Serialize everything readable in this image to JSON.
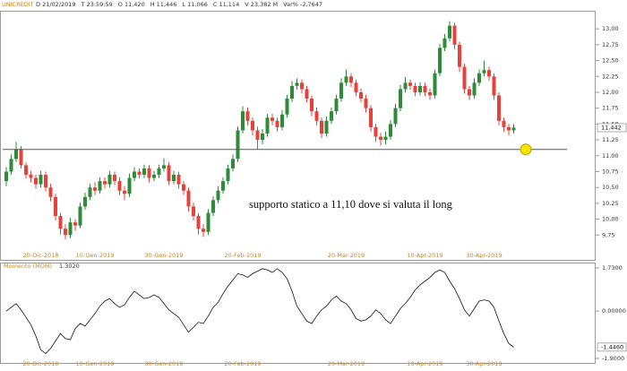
{
  "header": {
    "symbol": "UNICREDIT",
    "fields": [
      "D 21/02/2019",
      "T 23:59:59",
      "O 11,420",
      "H 11,446",
      "L 11,066",
      "C 11,114",
      "V 23,382 M",
      "Var% -2,7647"
    ]
  },
  "chart_data": [
    {
      "type": "candlestick",
      "categories": [
        null,
        null,
        null,
        null,
        null,
        null,
        null,
        "20-Dic-2018",
        null,
        null,
        null,
        null,
        null,
        null,
        null,
        null,
        null,
        null,
        "10-Gen-2019",
        null,
        null,
        null,
        null,
        null,
        null,
        null,
        null,
        null,
        null,
        null,
        null,
        null,
        "30-Gen-2019",
        null,
        null,
        null,
        null,
        null,
        null,
        null,
        null,
        null,
        null,
        null,
        null,
        null,
        null,
        null,
        "20-Feb-2019",
        null,
        null,
        null,
        null,
        null,
        null,
        null,
        null,
        null,
        null,
        null,
        null,
        null,
        null,
        null,
        null,
        null,
        null,
        null,
        null,
        "20-Mar-2019",
        null,
        null,
        null,
        null,
        null,
        null,
        null,
        null,
        null,
        null,
        null,
        null,
        null,
        null,
        null,
        "10-Apr-2019",
        null,
        null,
        null,
        null,
        null,
        null,
        null,
        null,
        null,
        null,
        null,
        "30-Apr-2019",
        null,
        null,
        null,
        null,
        null,
        null
      ],
      "open": [
        10.6,
        10.75,
        10.95,
        11.1,
        10.85,
        10.7,
        10.65,
        10.55,
        10.7,
        10.5,
        10.35,
        10.05,
        9.85,
        9.75,
        9.95,
        9.9,
        10.2,
        10.35,
        10.5,
        10.45,
        10.6,
        10.55,
        10.7,
        10.6,
        10.45,
        10.4,
        10.65,
        10.75,
        10.7,
        10.8,
        10.65,
        10.7,
        10.8,
        10.85,
        10.6,
        10.7,
        10.55,
        10.45,
        10.2,
        10.05,
        9.85,
        9.8,
        10.1,
        10.3,
        10.45,
        10.6,
        10.8,
        10.95,
        11.4,
        11.7,
        11.55,
        11.4,
        11.25,
        11.35,
        11.6,
        11.55,
        11.45,
        11.65,
        11.9,
        12.1,
        12.15,
        12.05,
        11.9,
        11.7,
        11.55,
        11.35,
        11.55,
        11.7,
        11.9,
        12.15,
        12.25,
        12.15,
        12.0,
        11.9,
        11.75,
        11.45,
        11.3,
        11.25,
        11.3,
        11.5,
        11.75,
        12.05,
        12.15,
        12.1,
        12.0,
        12.1,
        12.0,
        11.95,
        12.3,
        12.7,
        12.85,
        13.05,
        12.75,
        12.4,
        12.05,
        11.95,
        12.15,
        12.3,
        12.35,
        12.25,
        11.95,
        11.55,
        11.45,
        11.4
      ],
      "high": [
        10.82,
        11.02,
        11.22,
        11.15,
        10.9,
        10.76,
        10.7,
        10.76,
        10.75,
        10.56,
        10.4,
        10.1,
        9.92,
        10.02,
        10.0,
        10.26,
        10.42,
        10.56,
        10.58,
        10.66,
        10.66,
        10.76,
        10.75,
        10.66,
        10.52,
        10.72,
        10.82,
        10.8,
        10.86,
        10.85,
        10.76,
        10.86,
        10.96,
        10.9,
        10.76,
        10.75,
        10.6,
        10.5,
        10.26,
        10.1,
        9.92,
        10.16,
        10.36,
        10.52,
        10.66,
        10.86,
        11.02,
        11.46,
        11.78,
        11.76,
        11.6,
        11.46,
        11.42,
        11.66,
        11.66,
        11.6,
        11.72,
        11.96,
        12.18,
        12.22,
        12.2,
        12.1,
        11.95,
        11.76,
        11.6,
        11.62,
        11.76,
        11.96,
        12.22,
        12.36,
        12.3,
        12.2,
        12.06,
        11.96,
        11.8,
        11.5,
        11.36,
        11.38,
        11.56,
        11.82,
        12.12,
        12.24,
        12.2,
        12.15,
        12.16,
        12.15,
        12.06,
        12.36,
        12.76,
        12.92,
        13.12,
        13.1,
        12.8,
        12.45,
        12.1,
        12.22,
        12.36,
        12.5,
        12.4,
        12.3,
        12.0,
        11.6,
        11.5,
        11.5
      ],
      "low": [
        10.52,
        10.7,
        10.9,
        10.8,
        10.64,
        10.58,
        10.48,
        10.5,
        10.44,
        10.28,
        9.98,
        9.76,
        9.68,
        9.7,
        9.82,
        9.86,
        10.15,
        10.3,
        10.38,
        10.4,
        10.48,
        10.5,
        10.54,
        10.38,
        10.3,
        10.35,
        10.6,
        10.64,
        10.65,
        10.58,
        10.6,
        10.65,
        10.75,
        10.54,
        10.55,
        10.48,
        10.38,
        10.12,
        9.98,
        9.76,
        9.72,
        9.75,
        10.05,
        10.25,
        10.4,
        10.55,
        10.75,
        10.9,
        11.35,
        11.48,
        11.32,
        11.1,
        11.18,
        11.3,
        11.48,
        11.38,
        11.4,
        11.6,
        11.85,
        12.04,
        11.98,
        11.84,
        11.62,
        11.48,
        11.28,
        11.3,
        11.5,
        11.65,
        11.85,
        12.1,
        12.08,
        11.94,
        11.84,
        11.68,
        11.38,
        11.22,
        11.16,
        11.18,
        11.25,
        11.45,
        11.7,
        12.0,
        12.04,
        11.94,
        11.95,
        11.94,
        11.88,
        11.9,
        12.25,
        12.65,
        12.8,
        12.68,
        12.32,
        11.98,
        11.88,
        11.9,
        12.1,
        12.25,
        12.18,
        11.88,
        11.48,
        11.38,
        11.32,
        11.35
      ],
      "close": [
        10.75,
        10.95,
        11.1,
        10.85,
        10.7,
        10.65,
        10.55,
        10.7,
        10.5,
        10.35,
        10.05,
        9.85,
        9.75,
        9.95,
        9.9,
        10.2,
        10.35,
        10.5,
        10.45,
        10.6,
        10.55,
        10.7,
        10.6,
        10.45,
        10.4,
        10.65,
        10.75,
        10.7,
        10.8,
        10.65,
        10.7,
        10.8,
        10.85,
        10.6,
        10.7,
        10.55,
        10.45,
        10.2,
        10.05,
        9.85,
        9.8,
        10.1,
        10.3,
        10.45,
        10.6,
        10.8,
        10.95,
        11.4,
        11.7,
        11.55,
        11.4,
        11.25,
        11.35,
        11.6,
        11.55,
        11.45,
        11.65,
        11.9,
        12.1,
        12.15,
        12.05,
        11.9,
        11.7,
        11.55,
        11.35,
        11.55,
        11.7,
        11.9,
        12.15,
        12.25,
        12.15,
        12.0,
        11.9,
        11.75,
        11.45,
        11.3,
        11.25,
        11.3,
        11.5,
        11.75,
        12.05,
        12.15,
        12.1,
        12.0,
        12.1,
        12.0,
        11.95,
        12.3,
        12.7,
        12.85,
        13.05,
        12.75,
        12.4,
        12.05,
        11.95,
        12.15,
        12.3,
        12.35,
        12.25,
        11.95,
        11.55,
        11.45,
        11.4,
        11.442
      ],
      "up_color": "#2e8b3a",
      "down_color": "#e8413c",
      "ylim": [
        9.5,
        13.2
      ],
      "yticks": [
        {
          "value": 9.75,
          "label": "9,75"
        },
        {
          "value": 10,
          "label": "10,00"
        },
        {
          "value": 10.25,
          "label": "10,25"
        },
        {
          "value": 10.5,
          "label": "10,50"
        },
        {
          "value": 10.75,
          "label": "10,75"
        },
        {
          "value": 11,
          "label": "11,00"
        },
        {
          "value": 11.25,
          "label": "11,25"
        },
        {
          "value": 11.5,
          "label": "11,50"
        },
        {
          "value": 11.75,
          "label": "11,75"
        },
        {
          "value": 12,
          "label": "12,00"
        },
        {
          "value": 12.25,
          "label": "12,25"
        },
        {
          "value": 12.5,
          "label": "12,50"
        },
        {
          "value": 12.75,
          "label": "12,75"
        },
        {
          "value": 13,
          "label": "13,00"
        }
      ],
      "current": {
        "value": 11.442,
        "label": "11,442"
      },
      "support": {
        "value": 11.1,
        "label": "supporto statico a 11,10 dove si valuta il long"
      }
    },
    {
      "type": "line",
      "name": "Momento (MOM)",
      "legend_value": "1.3020",
      "color": "#111111",
      "values": [
        0.0,
        0.15,
        0.3,
        0.05,
        -0.25,
        -0.55,
        -1.0,
        -1.55,
        -1.7,
        -1.5,
        -1.2,
        -0.9,
        -1.1,
        -1.15,
        -0.7,
        -0.5,
        -0.6,
        -0.35,
        -0.1,
        0.2,
        0.4,
        0.5,
        0.3,
        0.15,
        0.25,
        0.55,
        0.8,
        0.65,
        0.5,
        0.55,
        0.65,
        0.55,
        0.3,
        0.05,
        -0.1,
        -0.25,
        -0.55,
        -0.85,
        -0.65,
        -0.45,
        -0.5,
        -0.2,
        0.15,
        0.35,
        0.7,
        1.0,
        1.25,
        1.5,
        1.45,
        1.35,
        1.5,
        1.6,
        1.7,
        1.65,
        1.55,
        1.7,
        1.55,
        1.3,
        0.8,
        0.2,
        -0.1,
        -0.4,
        -0.5,
        -0.2,
        0.05,
        0.2,
        0.45,
        0.6,
        0.4,
        0.3,
        0.05,
        -0.3,
        -0.4,
        -0.35,
        -0.2,
        0.05,
        -0.1,
        -0.35,
        -0.5,
        -0.2,
        0.1,
        0.3,
        0.55,
        0.85,
        1.05,
        1.2,
        1.35,
        1.55,
        1.65,
        1.55,
        1.2,
        0.9,
        0.5,
        0.05,
        -0.2,
        0.1,
        0.4,
        0.45,
        0.4,
        0.15,
        -0.4,
        -0.9,
        -1.3,
        -1.446
      ],
      "ylim": [
        -1.9,
        1.73
      ],
      "yticks": [
        {
          "value": -1.9,
          "label": "-1.9000"
        },
        {
          "value": 0,
          "label": "0.00000"
        },
        {
          "value": 1.73,
          "label": "1.7300"
        }
      ],
      "current": {
        "value": -1.446,
        "label": "-1.4460"
      }
    }
  ]
}
